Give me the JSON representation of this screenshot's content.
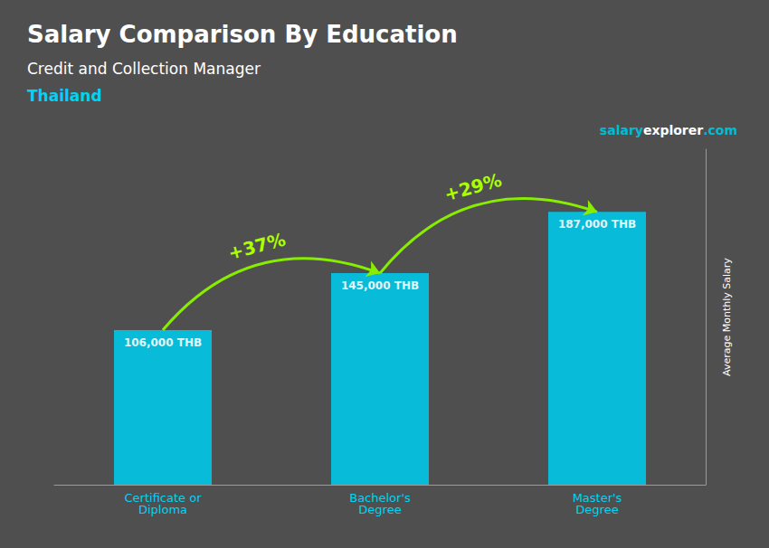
{
  "chart_data": {
    "type": "bar",
    "title": "Salary Comparison By Education",
    "subtitle": "Credit and Collection Manager",
    "location": "Thailand",
    "watermark": [
      "salary",
      "explorer",
      ".com"
    ],
    "ylabel": "Average Monthly Salary",
    "categories": [
      "Certificate or\nDiploma",
      "Bachelor's\nDegree",
      "Master's\nDegree"
    ],
    "values": [
      106000,
      145000,
      187000
    ],
    "value_labels": [
      "106,000 THB",
      "145,000 THB",
      "187,000 THB"
    ],
    "data_labels": true,
    "annotations": [
      "+37%",
      "+29%"
    ],
    "color": "#00c8e8",
    "ylim": [
      0,
      230000
    ],
    "tick_labels": "x",
    "grid": false
  }
}
